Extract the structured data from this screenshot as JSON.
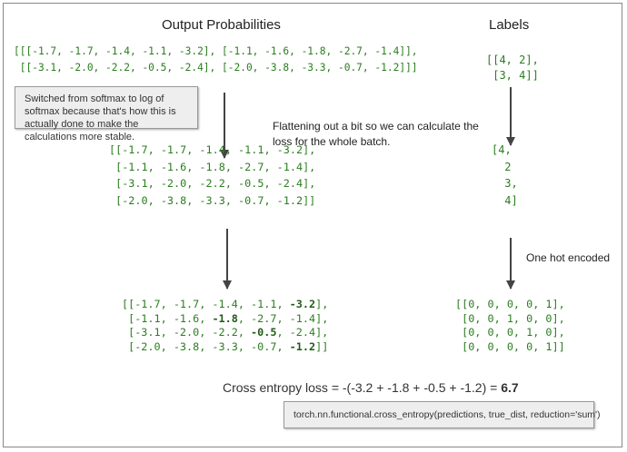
{
  "titles": {
    "output": "Output Probabilities",
    "labels": "Labels"
  },
  "output_tensor": [
    "[[[-1.7, -1.7, -1.4, -1.1, -3.2], [-1.1, -1.6, -1.8, -2.7, -1.4]],",
    " [[-3.1, -2.0, -2.2, -0.5, -2.4], [-2.0, -3.8, -3.3, -0.7, -1.2]]]"
  ],
  "labels_tensor": [
    "[[4, 2],",
    " [3, 4]]"
  ],
  "note_softmax": "Switched from softmax to log of softmax because that's how this is actually done to make the calculations more stable.",
  "note_flatten": "Flattening out a bit so we can calculate the loss for the whole batch.",
  "flat_matrix": [
    "[[-1.7, -1.7, -1.4, -1.1, -3.2],",
    " [-1.1, -1.6, -1.8, -2.7, -1.4],",
    " [-3.1, -2.0, -2.2, -0.5, -2.4],",
    " [-2.0, -3.8, -3.3, -0.7, -1.2]]"
  ],
  "flat_labels": [
    "[4,",
    " 2",
    " 3,",
    " 4]"
  ],
  "one_hot_label": "One hot encoded",
  "selected_matrix": [
    {
      "pre": "[[-1.7, -1.7, -1.4, -1.1, ",
      "bold": "-3.2",
      "post": "],"
    },
    {
      "pre": " [-1.1, -1.6, ",
      "bold": "-1.8",
      "post": ", -2.7, -1.4],"
    },
    {
      "pre": " [-3.1, -2.0, -2.2, ",
      "bold": "-0.5",
      "post": ", -2.4],"
    },
    {
      "pre": " [-2.0, -3.8, -3.3, -0.7, ",
      "bold": "-1.2",
      "post": "]]"
    }
  ],
  "one_hot": [
    "[[0, 0, 0, 0, 1],",
    " [0, 0, 1, 0, 0],",
    " [0, 0, 0, 1, 0],",
    " [0, 0, 0, 0, 1]]"
  ],
  "loss": {
    "text": "Cross entropy loss = -(-3.2 + -1.8 + -0.5 + -1.2) = ",
    "result": "6.7"
  },
  "code_note": "torch.nn.functional.cross_entropy(predictions, true_dist, reduction='sum')"
}
